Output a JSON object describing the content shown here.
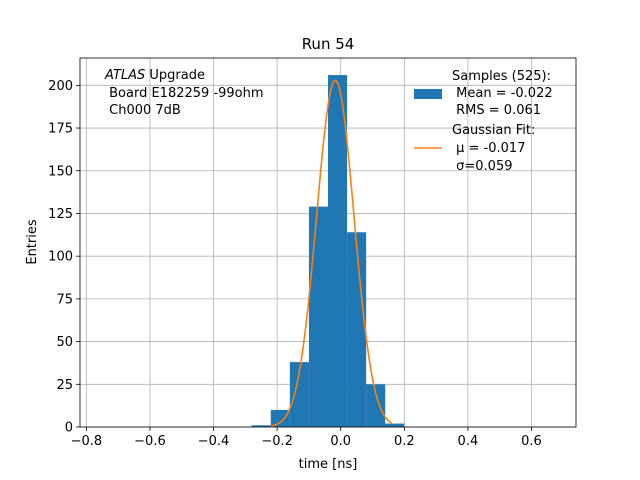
{
  "chart_data": {
    "type": "bar",
    "title": "Run 54",
    "xlabel": "time [ns]",
    "ylabel": "Entries",
    "xlim": [
      -0.82,
      0.74
    ],
    "ylim": [
      0,
      216
    ],
    "x_ticks": [
      -0.8,
      -0.6,
      -0.4,
      -0.2,
      0.0,
      0.2,
      0.4,
      0.6
    ],
    "x_tick_labels": [
      "−0.8",
      "−0.6",
      "−0.4",
      "−0.2",
      "0.0",
      "0.2",
      "0.4",
      "0.6"
    ],
    "y_ticks": [
      0,
      25,
      50,
      75,
      100,
      125,
      150,
      175,
      200
    ],
    "y_tick_labels": [
      "0",
      "25",
      "50",
      "75",
      "100",
      "125",
      "150",
      "175",
      "200"
    ],
    "grid": true,
    "histogram": {
      "name": "Samples (525):",
      "color": "#1f77b4",
      "bins": [
        {
          "left": -0.28,
          "right": -0.22,
          "count": 1
        },
        {
          "left": -0.22,
          "right": -0.16,
          "count": 10
        },
        {
          "left": -0.16,
          "right": -0.1,
          "count": 38
        },
        {
          "left": -0.1,
          "right": -0.04,
          "count": 129
        },
        {
          "left": -0.04,
          "right": 0.02,
          "count": 206
        },
        {
          "left": 0.02,
          "right": 0.08,
          "count": 114
        },
        {
          "left": 0.08,
          "right": 0.14,
          "count": 25
        },
        {
          "left": 0.14,
          "right": 0.2,
          "count": 2
        }
      ]
    },
    "fit": {
      "name": "Gaussian Fit:",
      "color": "#ff7f0e",
      "mu": -0.017,
      "sigma": 0.059,
      "amplitude": 203,
      "x_range": [
        -0.22,
        0.16
      ]
    },
    "legend": {
      "placement": "upper right",
      "entries": [
        {
          "lines": [
            "Samples (525):",
            " Mean = -0.022",
            " RMS = 0.061"
          ],
          "marker": "patch",
          "color": "#1f77b4"
        },
        {
          "lines": [
            "Gaussian Fit:",
            " μ = -0.017",
            " σ=0.059"
          ],
          "marker": "line",
          "color": "#ff7f0e"
        }
      ]
    },
    "annotation": {
      "placement": "upper left",
      "lines": [
        {
          "italic": "ATLAS",
          "rest": " Upgrade"
        },
        {
          "italic": "",
          "rest": " Board E182259 -99ohm"
        },
        {
          "italic": "",
          "rest": " Ch000 7dB"
        }
      ]
    }
  }
}
